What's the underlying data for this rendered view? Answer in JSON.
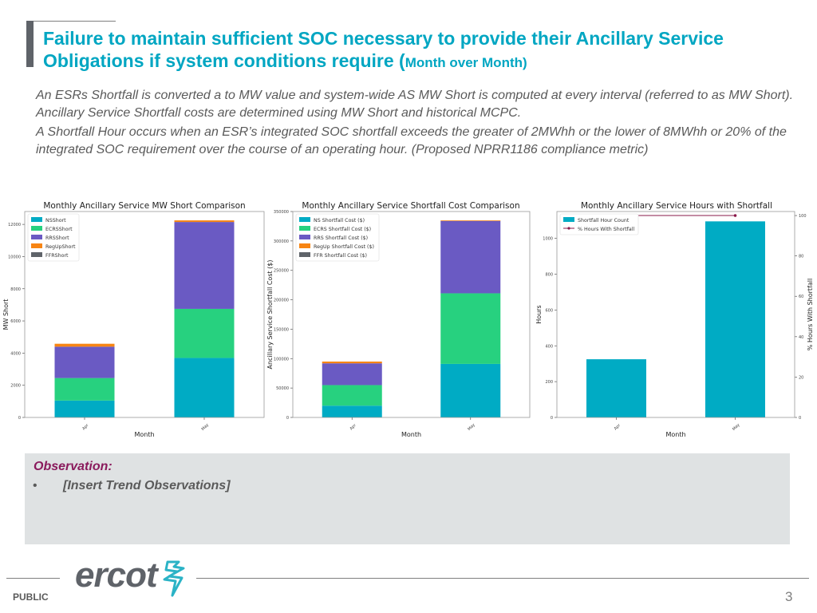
{
  "header": {
    "title_main": "Failure to maintain sufficient SOC necessary to provide their Ancillary Service Obligations if system conditions require (",
    "title_small": "Month over Month)"
  },
  "body": {
    "paragraphs": [
      "An ESRs Shortfall is converted a to MW value and system-wide AS MW Short is computed at every interval (referred to as MW Short). Ancillary Service Shortfall costs are determined using MW Short and historical MCPC.",
      "A Shortfall Hour occurs when an ESR’s integrated SOC shortfall exceeds the greater of 2MWhh or the lower of 8MWhh or 20% of the integrated SOC requirement over the course of an operating hour. (Proposed NPRR1186 compliance metric)"
    ]
  },
  "colors": {
    "title": "#00a6c2",
    "ns": "#00abc4",
    "ecrs": "#27d17f",
    "rrs": "#6a5ac3",
    "regup": "#f78513",
    "ffr": "#5f6369",
    "pct_line": "#8a1a4a",
    "observation": "#8a1a5c"
  },
  "chart_data": [
    {
      "type": "bar",
      "stacked": true,
      "title": "Monthly Ancillary Service MW Short Comparison",
      "xlabel": "Month",
      "ylabel": "MW Short",
      "categories": [
        "Apr",
        "May"
      ],
      "ylim": [
        0,
        12800
      ],
      "yticks": [
        0,
        2000,
        4000,
        6000,
        8000,
        10000,
        12000
      ],
      "legend_position": "top-left",
      "series": [
        {
          "name": "NSShort",
          "color_key": "ns",
          "values": [
            1050,
            3700
          ]
        },
        {
          "name": "ECRSShort",
          "color_key": "ecrs",
          "values": [
            1400,
            3050
          ]
        },
        {
          "name": "RRSShort",
          "color_key": "rrs",
          "values": [
            1950,
            5400
          ]
        },
        {
          "name": "RegUpShort",
          "color_key": "regup",
          "values": [
            180,
            100
          ]
        },
        {
          "name": "FFRShort",
          "color_key": "ffr",
          "values": [
            0,
            0
          ]
        }
      ]
    },
    {
      "type": "bar",
      "stacked": true,
      "title": "Monthly Ancillary Service Shortfall Cost Comparison",
      "xlabel": "Month",
      "ylabel": "Ancillary Service Shortfall Cost ($)",
      "categories": [
        "Apr",
        "May"
      ],
      "ylim": [
        0,
        350000
      ],
      "yticks": [
        0,
        50000,
        100000,
        150000,
        200000,
        250000,
        300000,
        350000
      ],
      "legend_position": "top-left",
      "series": [
        {
          "name": "NS Shortfall Cost ($)",
          "color_key": "ns",
          "values": [
            20000,
            91000
          ]
        },
        {
          "name": "ECRS Shortfall Cost ($)",
          "color_key": "ecrs",
          "values": [
            35000,
            120000
          ]
        },
        {
          "name": "RRS Shortfall Cost ($)",
          "color_key": "rrs",
          "values": [
            37000,
            123000
          ]
        },
        {
          "name": "RegUp Shortfall Cost ($)",
          "color_key": "regup",
          "values": [
            3000,
            1000
          ]
        },
        {
          "name": "FFR Shortfall Cost ($)",
          "color_key": "ffr",
          "values": [
            0,
            0
          ]
        }
      ]
    },
    {
      "type": "bar",
      "stacked": false,
      "title": "Monthly Ancillary Service Hours with Shortfall",
      "xlabel": "Month",
      "ylabel": "Hours",
      "y2label": "% Hours With Shortfall",
      "categories": [
        "Apr",
        "May"
      ],
      "ylim": [
        0,
        1150
      ],
      "yticks": [
        0,
        200,
        400,
        600,
        800,
        1000
      ],
      "y2lim": [
        0,
        102
      ],
      "y2ticks": [
        0,
        20,
        40,
        60,
        80,
        100
      ],
      "legend_position": "top-left",
      "series": [
        {
          "name": "Shortfall Hour Count",
          "color_key": "ns",
          "kind": "bar",
          "values": [
            325,
            1095
          ]
        },
        {
          "name": "% Hours With Shortfall",
          "color_key": "pct_line",
          "kind": "line",
          "axis": "right",
          "values": [
            100,
            100
          ]
        }
      ]
    }
  ],
  "observation": {
    "title": "Observation:",
    "bullet": "•",
    "items": [
      "[Insert Trend Observations]"
    ]
  },
  "footer": {
    "classification": "PUBLIC",
    "logo_text": "ercot",
    "page_number": "3"
  }
}
